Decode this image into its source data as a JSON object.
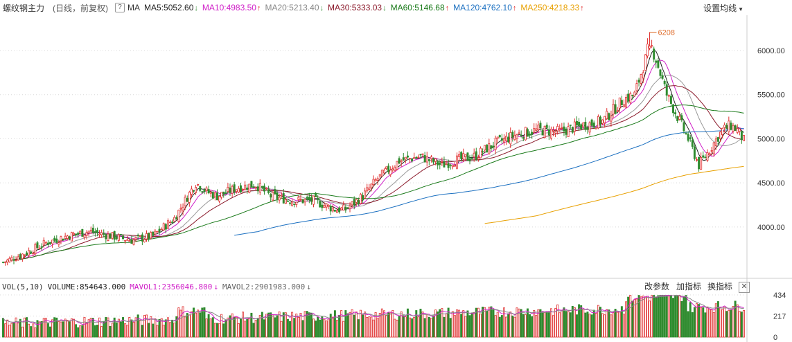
{
  "header": {
    "title": "螺纹钢主力",
    "subtitle": "(日线，前复权)",
    "help": "?",
    "ma_label": "MA",
    "ma_items": [
      {
        "text": "MA5:5052.60",
        "arrow": "↓",
        "color": "#222222"
      },
      {
        "text": "MA10:4983.50",
        "arrow": "↑",
        "color": "#d020c8"
      },
      {
        "text": "MA20:5213.40",
        "arrow": "↓",
        "color": "#888888"
      },
      {
        "text": "MA30:5333.03",
        "arrow": "↓",
        "color": "#8b1a2b"
      },
      {
        "text": "MA60:5146.68",
        "arrow": "↑",
        "color": "#1a7a1a"
      },
      {
        "text": "MA120:4762.10",
        "arrow": "↑",
        "color": "#1a6fc0"
      },
      {
        "text": "MA250:4218.33",
        "arrow": "↑",
        "color": "#e8a000"
      }
    ],
    "settings": "设置均线"
  },
  "volume_header": {
    "label": "VOL(5,10)",
    "volume": "VOLUME:854643.000",
    "mavol1": "MAVOL1:2356046.800",
    "mavol1_arrow": "↓",
    "mavol2": "MAVOL2:2901983.000",
    "mavol2_arrow": "↓",
    "btn_params": "改参数",
    "btn_add": "加指标",
    "btn_switch": "换指标",
    "btn_close": "✕"
  },
  "chart_data": {
    "type": "candlestick",
    "price_axis": {
      "ticks": [
        "6000.00",
        "5500.00",
        "5000.00",
        "4500.00",
        "4000.00"
      ],
      "range": [
        3450,
        6400
      ]
    },
    "volume_axis": {
      "ticks": [
        "434",
        "217",
        "0"
      ],
      "range": [
        0,
        434
      ]
    },
    "peak_annotation": "6208",
    "peak_value": 6208,
    "colors": {
      "up": "#e03030",
      "down": "#2e8b2e",
      "ma5": "#222222",
      "ma10": "#d020c8",
      "ma20": "#999999",
      "ma30": "#8b1a2b",
      "ma60": "#1a7a1a",
      "ma120": "#1a6fc0",
      "ma250": "#e8a000",
      "mavol1": "#d020c8",
      "mavol2": "#888888"
    },
    "close_anchors": [
      [
        0,
        3600
      ],
      [
        10,
        3700
      ],
      [
        20,
        3820
      ],
      [
        30,
        3900
      ],
      [
        40,
        3950
      ],
      [
        50,
        3900
      ],
      [
        60,
        3850
      ],
      [
        70,
        3900
      ],
      [
        80,
        4100
      ],
      [
        90,
        4500
      ],
      [
        95,
        4400
      ],
      [
        100,
        4350
      ],
      [
        110,
        4450
      ],
      [
        118,
        4480
      ],
      [
        125,
        4350
      ],
      [
        135,
        4300
      ],
      [
        145,
        4300
      ],
      [
        155,
        4200
      ],
      [
        160,
        4200
      ],
      [
        168,
        4350
      ],
      [
        175,
        4550
      ],
      [
        185,
        4750
      ],
      [
        195,
        4800
      ],
      [
        205,
        4700
      ],
      [
        210,
        4750
      ],
      [
        220,
        4800
      ],
      [
        230,
        4950
      ],
      [
        240,
        5050
      ],
      [
        250,
        5100
      ],
      [
        260,
        5080
      ],
      [
        270,
        5150
      ],
      [
        280,
        5200
      ],
      [
        290,
        5450
      ],
      [
        295,
        5500
      ],
      [
        300,
        5900
      ],
      [
        302,
        6100
      ],
      [
        305,
        5900
      ],
      [
        310,
        5500
      ],
      [
        315,
        5250
      ],
      [
        320,
        5000
      ],
      [
        325,
        4700
      ],
      [
        328,
        4800
      ],
      [
        332,
        4950
      ],
      [
        336,
        5100
      ],
      [
        340,
        5150
      ],
      [
        343,
        5100
      ],
      [
        346,
        4980
      ]
    ],
    "ma_final": {
      "ma5": 5052.6,
      "ma10": 4983.5,
      "ma20": 5213.4,
      "ma30": 5333.03,
      "ma60": 5146.68,
      "ma120": 4762.1,
      "ma250": 4218.33
    },
    "volume_final": 854643,
    "mavol1_final": 2356046.8,
    "mavol2_final": 2901983
  }
}
